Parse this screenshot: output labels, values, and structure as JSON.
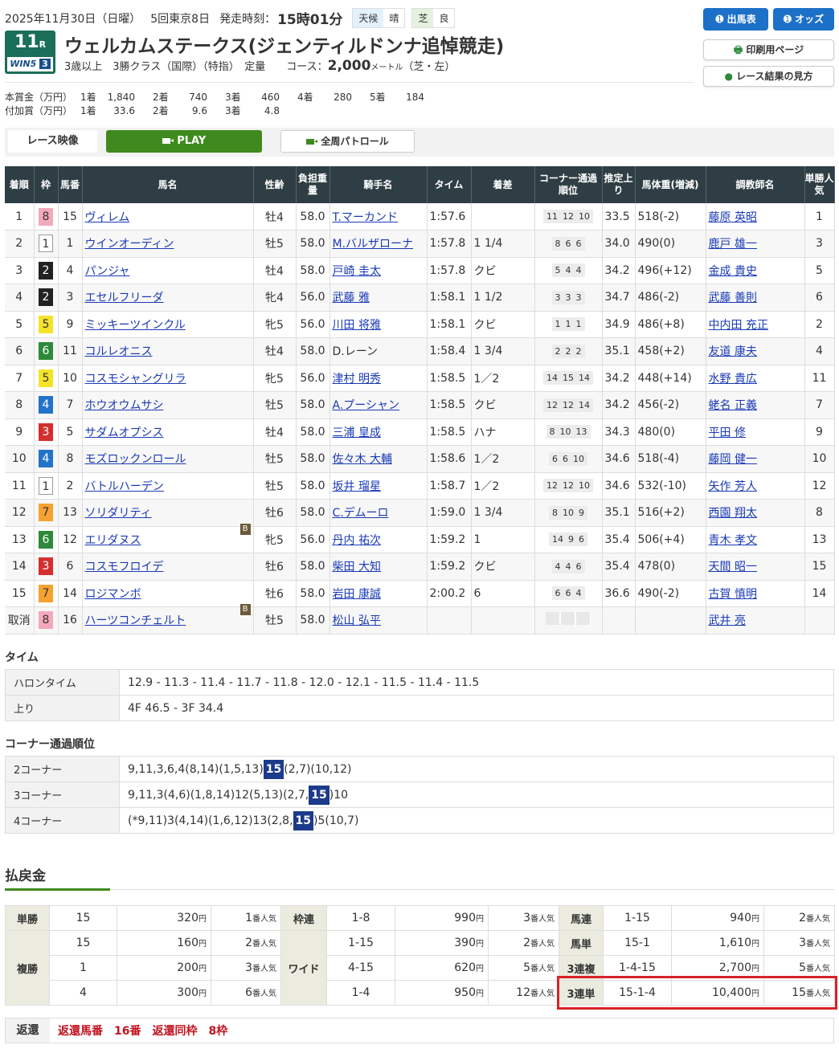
{
  "header": {
    "date": "2025年11月30日（日曜）",
    "meeting": "5回東京8日",
    "post_label": "発走時刻：",
    "post_time": "15時01分",
    "weather_label": "天候",
    "weather": "晴",
    "track_label": "芝",
    "track": "良",
    "race_no": "11",
    "race_unit": "R",
    "win5_label": "WIN5",
    "win5_no": "3",
    "title": "ウェルカムステークス(ジェンティルドンナ追悼競走)",
    "conditions": "3歳以上　3勝クラス（国際）（特指）　定量　　コース：",
    "distance": "2,000",
    "distance_unit": "メートル",
    "course": "（芝・左）"
  },
  "prize": {
    "main_label": "本賞金（万円）",
    "main": [
      [
        "1着",
        "1,840"
      ],
      [
        "2着",
        "740"
      ],
      [
        "3着",
        "460"
      ],
      [
        "4着",
        "280"
      ],
      [
        "5着",
        "184"
      ]
    ],
    "extra_label": "付加賞（万円）",
    "extra": [
      [
        "1着",
        "33.6"
      ],
      [
        "2着",
        "9.6"
      ],
      [
        "3着",
        "4.8"
      ]
    ]
  },
  "buttons": {
    "entries": "出馬表",
    "odds": "オッズ",
    "print": "印刷用ページ",
    "howto": "レース結果の見方"
  },
  "video": {
    "label": "レース映像",
    "play": "PLAY",
    "patrol": "全周パトロール"
  },
  "colors": {
    "waku": {
      "1": "#ffffff",
      "2": "#222222",
      "3": "#d42f2f",
      "4": "#2374c8",
      "5": "#f5e32a",
      "6": "#2d8a3a",
      "7": "#f5a231",
      "8": "#f3a9bb"
    }
  },
  "results": {
    "headers": [
      "着順",
      "枠",
      "馬番",
      "馬名",
      "性齢",
      "負担重量",
      "騎手名",
      "タイム",
      "着差",
      "コーナー通過順位",
      "推定上り",
      "馬体重(増減)",
      "調教師名",
      "単勝人気"
    ],
    "rows": [
      {
        "pos": "1",
        "waku": "8",
        "num": "15",
        "horse": "ヴィレム",
        "sex": "牡4",
        "wt": "58.0",
        "jockey": "T.マーカンド",
        "time": "1:57.6",
        "margin": "",
        "corner": [
          "11",
          "12",
          "10"
        ],
        "last": "33.5",
        "bw": "518(-2)",
        "trainer": "藤原 英昭",
        "pop": "1"
      },
      {
        "pos": "2",
        "waku": "1",
        "num": "1",
        "horse": "ウインオーディン",
        "sex": "牡5",
        "wt": "58.0",
        "jockey": "M.バルザローナ",
        "time": "1:57.8",
        "margin": "1 1/4",
        "corner": [
          "8",
          "6",
          "6"
        ],
        "last": "34.0",
        "bw": "490(0)",
        "trainer": "鹿戸 雄一",
        "pop": "3"
      },
      {
        "pos": "3",
        "waku": "2",
        "num": "4",
        "horse": "パンジャ",
        "sex": "牡4",
        "wt": "58.0",
        "jockey": "戸崎 圭太",
        "time": "1:57.8",
        "margin": "クビ",
        "corner": [
          "5",
          "4",
          "4"
        ],
        "last": "34.2",
        "bw": "496(+12)",
        "trainer": "金成 貴史",
        "pop": "5"
      },
      {
        "pos": "4",
        "waku": "2",
        "num": "3",
        "horse": "エセルフリーダ",
        "sex": "牝4",
        "wt": "56.0",
        "jockey": "武藤 雅",
        "time": "1:58.1",
        "margin": "1 1/2",
        "corner": [
          "3",
          "3",
          "3"
        ],
        "last": "34.7",
        "bw": "486(-2)",
        "trainer": "武藤 善則",
        "pop": "6"
      },
      {
        "pos": "5",
        "waku": "5",
        "num": "9",
        "horse": "ミッキーツインクル",
        "sex": "牝5",
        "wt": "56.0",
        "jockey": "川田 将雅",
        "time": "1:58.1",
        "margin": "クビ",
        "corner": [
          "1",
          "1",
          "1"
        ],
        "last": "34.9",
        "bw": "486(+8)",
        "trainer": "中内田 充正",
        "pop": "2"
      },
      {
        "pos": "6",
        "waku": "6",
        "num": "11",
        "horse": "コルレオニス",
        "sex": "牡4",
        "wt": "58.0",
        "jockey": "D.レーン",
        "jockey_plain": true,
        "time": "1:58.4",
        "margin": "1 3/4",
        "corner": [
          "2",
          "2",
          "2"
        ],
        "last": "35.1",
        "bw": "458(+2)",
        "trainer": "友道 康夫",
        "pop": "4"
      },
      {
        "pos": "7",
        "waku": "5",
        "num": "10",
        "horse": "コスモシャングリラ",
        "sex": "牝5",
        "wt": "56.0",
        "jockey": "津村 明秀",
        "time": "1:58.5",
        "margin": "1／2",
        "corner": [
          "14",
          "15",
          "14"
        ],
        "last": "34.2",
        "bw": "448(+14)",
        "trainer": "水野 貴広",
        "pop": "11"
      },
      {
        "pos": "8",
        "waku": "4",
        "num": "7",
        "horse": "ホウオウムサシ",
        "sex": "牡5",
        "wt": "58.0",
        "jockey": "A.プーシャン",
        "time": "1:58.5",
        "margin": "クビ",
        "corner": [
          "12",
          "12",
          "14"
        ],
        "last": "34.2",
        "bw": "456(-2)",
        "trainer": "蛯名 正義",
        "pop": "7"
      },
      {
        "pos": "9",
        "waku": "3",
        "num": "5",
        "horse": "サダムオプシス",
        "sex": "牡4",
        "wt": "58.0",
        "jockey": "三浦 皇成",
        "time": "1:58.5",
        "margin": "ハナ",
        "corner": [
          "8",
          "10",
          "13"
        ],
        "last": "34.3",
        "bw": "480(0)",
        "trainer": "平田 修",
        "pop": "9"
      },
      {
        "pos": "10",
        "waku": "4",
        "num": "8",
        "horse": "モズロックンロール",
        "sex": "牡5",
        "wt": "58.0",
        "jockey": "佐々木 大輔",
        "time": "1:58.6",
        "margin": "1／2",
        "corner": [
          "6",
          "6",
          "10"
        ],
        "last": "34.6",
        "bw": "518(-4)",
        "trainer": "藤岡 健一",
        "pop": "10"
      },
      {
        "pos": "11",
        "waku": "1",
        "num": "2",
        "horse": "バトルハーデン",
        "sex": "牡5",
        "wt": "58.0",
        "jockey": "坂井 瑠星",
        "time": "1:58.7",
        "margin": "1／2",
        "corner": [
          "12",
          "12",
          "10"
        ],
        "last": "34.6",
        "bw": "532(-10)",
        "trainer": "矢作 芳人",
        "pop": "12"
      },
      {
        "pos": "12",
        "waku": "7",
        "num": "13",
        "horse": "ソリダリティ",
        "sex": "牡6",
        "wt": "58.0",
        "jockey": "C.デムーロ",
        "time": "1:59.0",
        "margin": "1 3/4",
        "corner": [
          "8",
          "10",
          "9"
        ],
        "last": "35.1",
        "bw": "516(+2)",
        "trainer": "西園 翔太",
        "pop": "8"
      },
      {
        "pos": "13",
        "waku": "6",
        "num": "12",
        "horse": "エリダヌス",
        "blinker": "B",
        "sex": "牝5",
        "wt": "56.0",
        "jockey": "丹内 祐次",
        "time": "1:59.2",
        "margin": "1",
        "corner": [
          "14",
          "9",
          "6"
        ],
        "last": "35.4",
        "bw": "506(+4)",
        "trainer": "青木 孝文",
        "pop": "13"
      },
      {
        "pos": "14",
        "waku": "3",
        "num": "6",
        "horse": "コスモフロイデ",
        "sex": "牡6",
        "wt": "58.0",
        "jockey": "柴田 大知",
        "time": "1:59.2",
        "margin": "クビ",
        "corner": [
          "4",
          "4",
          "6"
        ],
        "last": "35.4",
        "bw": "478(0)",
        "trainer": "天間 昭一",
        "pop": "15"
      },
      {
        "pos": "15",
        "waku": "7",
        "num": "14",
        "horse": "ロジマンボ",
        "sex": "牡6",
        "wt": "58.0",
        "jockey": "岩田 康誠",
        "time": "2:00.2",
        "margin": "6",
        "corner": [
          "6",
          "6",
          "4"
        ],
        "last": "36.6",
        "bw": "490(-2)",
        "trainer": "古賀 慎明",
        "pop": "14"
      },
      {
        "pos": "取消",
        "waku": "8",
        "num": "16",
        "horse": "ハーツコンチェルト",
        "blinker": "B",
        "sex": "牡5",
        "wt": "58.0",
        "jockey": "松山 弘平",
        "time": "",
        "margin": "",
        "corner": [],
        "last": "",
        "bw": "",
        "trainer": "武井 亮",
        "pop": ""
      }
    ]
  },
  "time_section": {
    "title": "タイム",
    "furlong_label": "ハロンタイム",
    "furlong": "12.9 - 11.3 - 11.4 - 11.7 - 11.8 - 12.0 - 12.1 - 11.5 - 11.4 - 11.5",
    "last_label": "上り",
    "last": "4F 46.5 - 3F 34.4"
  },
  "corner_section": {
    "title": "コーナー通過順位",
    "rows": [
      {
        "label": "2コーナー",
        "before": "9,11,3,6,4(8,14)(1,5,13)",
        "hl": "15",
        "after": "(2,7)(10,12)"
      },
      {
        "label": "3コーナー",
        "before": "9,11,3(4,6)(1,8,14)12(5,13)(2,7,",
        "hl": "15",
        "after": ")10"
      },
      {
        "label": "4コーナー",
        "before": "(*9,11)3(4,14)(1,6,12)13(2,8,",
        "hl": "15",
        "after": ")5(10,7)"
      }
    ]
  },
  "payout": {
    "title": "払戻金",
    "yen": "円",
    "pop_suffix": "番人気",
    "tansho": {
      "label": "単勝",
      "num": "15",
      "amt": "320",
      "pop": "1"
    },
    "fukusho": {
      "label": "複勝",
      "rows": [
        {
          "num": "15",
          "amt": "160",
          "pop": "2"
        },
        {
          "num": "1",
          "amt": "200",
          "pop": "3"
        },
        {
          "num": "4",
          "amt": "300",
          "pop": "6"
        }
      ]
    },
    "wakuren": {
      "label": "枠連",
      "num": "1-8",
      "amt": "990",
      "pop": "3"
    },
    "wide": {
      "label": "ワイド",
      "rows": [
        {
          "num": "1-15",
          "amt": "390",
          "pop": "2"
        },
        {
          "num": "4-15",
          "amt": "620",
          "pop": "5"
        },
        {
          "num": "1-4",
          "amt": "950",
          "pop": "12"
        }
      ]
    },
    "right": [
      {
        "label": "馬連",
        "num": "1-15",
        "amt": "940",
        "pop": "2"
      },
      {
        "label": "馬単",
        "num": "15-1",
        "amt": "1,610",
        "pop": "3"
      },
      {
        "label": "3連複",
        "num": "1-4-15",
        "amt": "2,700",
        "pop": "5"
      },
      {
        "label": "3連単",
        "num": "15-1-4",
        "amt": "10,400",
        "pop": "15"
      }
    ]
  },
  "refund": {
    "label": "返還",
    "text": "返還馬番　16番　返還同枠　8枠"
  }
}
